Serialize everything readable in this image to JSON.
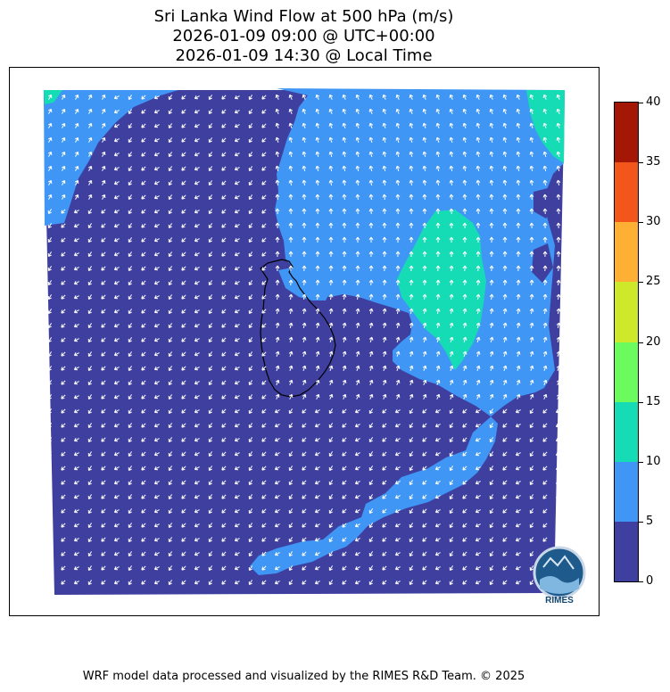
{
  "title": {
    "line1": "Sri Lanka Wind Flow at 500 hPa (m/s)",
    "line2": "2026-01-09 09:00 @ UTC+00:00",
    "line3": "2026-01-09 14:30 @ Local Time"
  },
  "colorbar": {
    "levels": [
      "0",
      "5",
      "10",
      "15",
      "20",
      "25",
      "30",
      "35",
      "40"
    ],
    "colors": [
      "#3f3fa0",
      "#3f96f4",
      "#16dcb6",
      "#6cfb5c",
      "#cde92a",
      "#fdb034",
      "#f2561a",
      "#a51705"
    ]
  },
  "colors": {
    "calm": "#3f3fa0",
    "moderate": "#3f96f4",
    "strong": "#16dcb6",
    "arrow": "#ffffff",
    "coastline": "#000000"
  },
  "logo": {
    "text": "RIMES"
  },
  "footer": "WRF model data processed and visualized by the RIMES R&D Team. © 2025"
}
